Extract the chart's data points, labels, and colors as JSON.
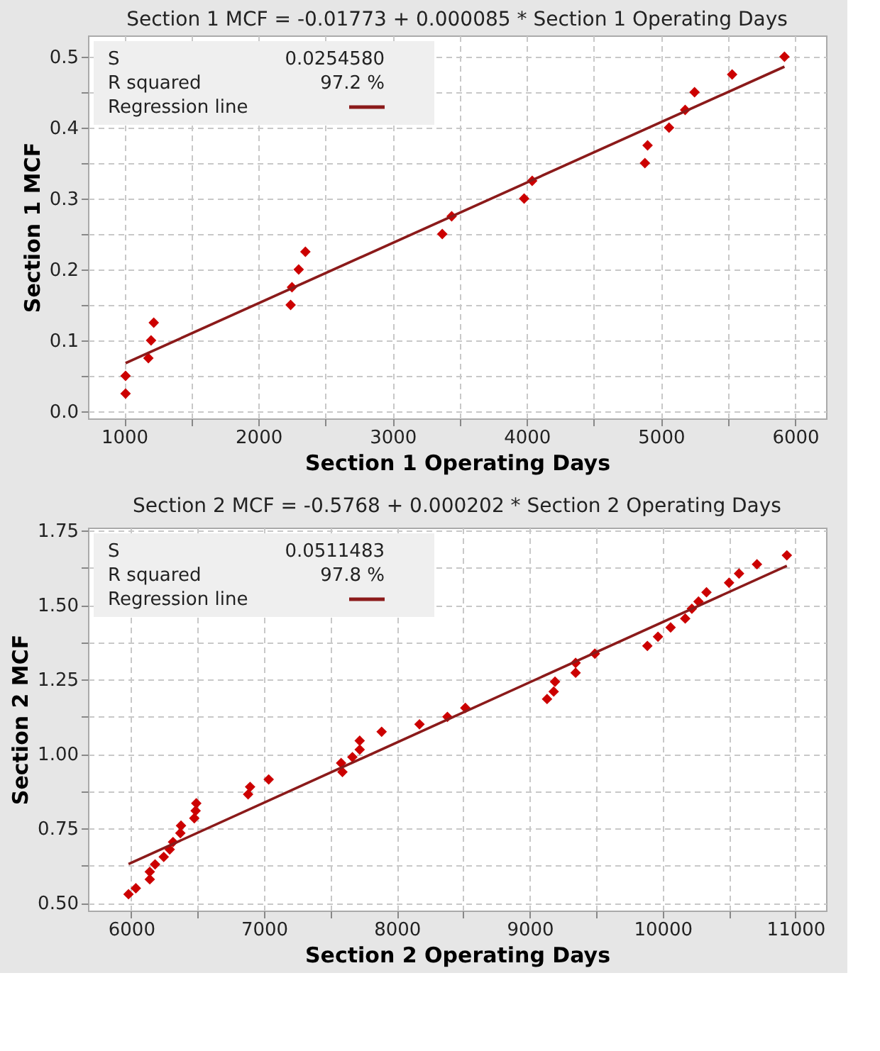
{
  "chart_data": [
    {
      "type": "scatter",
      "title": "Section 1 MCF = -0.01773 + 0.000085 * Section 1 Operating Days",
      "xlabel": "Section 1 Operating Days",
      "ylabel": "Section 1 MCF",
      "xlim": [
        730,
        6230
      ],
      "ylim": [
        -0.01,
        0.53
      ],
      "xticks": [
        1000,
        {
          "value": 1500,
          "label": null
        },
        2000,
        {
          "value": 2500,
          "label": null
        },
        3000,
        {
          "value": 3500,
          "label": null
        },
        4000,
        {
          "value": 4500,
          "label": null
        },
        5000,
        {
          "value": 5500,
          "label": null
        },
        6000
      ],
      "yticks": [
        {
          "value": 0,
          "label": "0.0"
        },
        {
          "value": 0.05,
          "label": null
        },
        0.1,
        {
          "value": 0.15,
          "label": null
        },
        0.2,
        {
          "value": 0.25,
          "label": null
        },
        0.3,
        {
          "value": 0.35,
          "label": null
        },
        0.4,
        {
          "value": 0.45,
          "label": null
        },
        0.5
      ],
      "grid": true,
      "legend": "top left",
      "annotations": [
        "S    0.0254580",
        "R squared    97.2 %"
      ],
      "series": [
        {
          "type": "scatter",
          "marker": "diamond",
          "color": "#cc0000",
          "x": [
            1010,
            1010,
            1180,
            1200,
            1220,
            2240,
            2250,
            2300,
            2350,
            3370,
            3440,
            3980,
            4040,
            4880,
            4900,
            5060,
            5180,
            5250,
            5530,
            5920
          ],
          "values": [
            0.025,
            0.05,
            0.075,
            0.1,
            0.125,
            0.15,
            0.175,
            0.2,
            0.225,
            0.25,
            0.275,
            0.3,
            0.325,
            0.35,
            0.375,
            0.4,
            0.425,
            0.45,
            0.475,
            0.5
          ]
        },
        {
          "type": "line",
          "name": "Regression line",
          "color": "#8b1a1a",
          "x": [
            1010,
            5920
          ],
          "values": [
            0.068,
            0.486
          ]
        }
      ]
    },
    {
      "type": "scatter",
      "title": "Section 2 MCF = -0.5768 + 0.000202 * Section 2 Operating Days",
      "xlabel": "Section 2 Operating Days",
      "ylabel": "Section 2 MCF",
      "xlim": [
        5675,
        11230
      ],
      "ylim": [
        0.475,
        1.76
      ],
      "xticks": [
        6000,
        {
          "value": 6500,
          "label": null
        },
        7000,
        {
          "value": 7500,
          "label": null
        },
        8000,
        {
          "value": 8500,
          "label": null
        },
        9000,
        {
          "value": 9500,
          "label": null
        },
        10000,
        {
          "value": 10500,
          "label": null
        },
        11000
      ],
      "yticks": [
        {
          "value": 0.5,
          "label": "0.50"
        },
        {
          "value": 0.625,
          "label": null
        },
        0.75,
        {
          "value": 0.875,
          "label": null
        },
        {
          "value": 1,
          "label": "1.00"
        },
        {
          "value": 1.125,
          "label": null
        },
        1.25,
        {
          "value": 1.375,
          "label": null
        },
        {
          "value": 1.5,
          "label": "1.50"
        },
        {
          "value": 1.625,
          "label": null
        },
        1.75
      ],
      "grid": true,
      "legend": "top left",
      "annotations": [
        "S    0.0511483",
        "R squared    97.8 %"
      ],
      "series": [
        {
          "type": "scatter",
          "marker": "diamond",
          "color": "#cc0000",
          "x": [
            5980,
            6035,
            6140,
            6140,
            6180,
            6245,
            6290,
            6315,
            6370,
            6375,
            6475,
            6485,
            6490,
            6880,
            6895,
            7035,
            7590,
            7580,
            7665,
            7720,
            7720,
            7885,
            8170,
            8380,
            8515,
            9130,
            9180,
            9190,
            9345,
            9345,
            9490,
            9885,
            9965,
            10060,
            10170,
            10220,
            10270,
            10330,
            10500,
            10575,
            10710,
            10935
          ],
          "values": [
            0.53,
            0.55,
            0.58,
            0.605,
            0.63,
            0.655,
            0.68,
            0.705,
            0.735,
            0.76,
            0.785,
            0.81,
            0.835,
            0.865,
            0.89,
            0.915,
            0.94,
            0.97,
            0.99,
            1.015,
            1.045,
            1.075,
            1.1,
            1.125,
            1.155,
            1.185,
            1.21,
            1.243,
            1.273,
            1.306,
            1.337,
            1.363,
            1.394,
            1.425,
            1.455,
            1.488,
            1.512,
            1.543,
            1.575,
            1.606,
            1.637,
            1.667
          ]
        },
        {
          "type": "line",
          "name": "Regression line",
          "color": "#8b1a1a",
          "x": [
            5980,
            10935
          ],
          "values": [
            0.631,
            1.632
          ]
        }
      ]
    }
  ]
}
